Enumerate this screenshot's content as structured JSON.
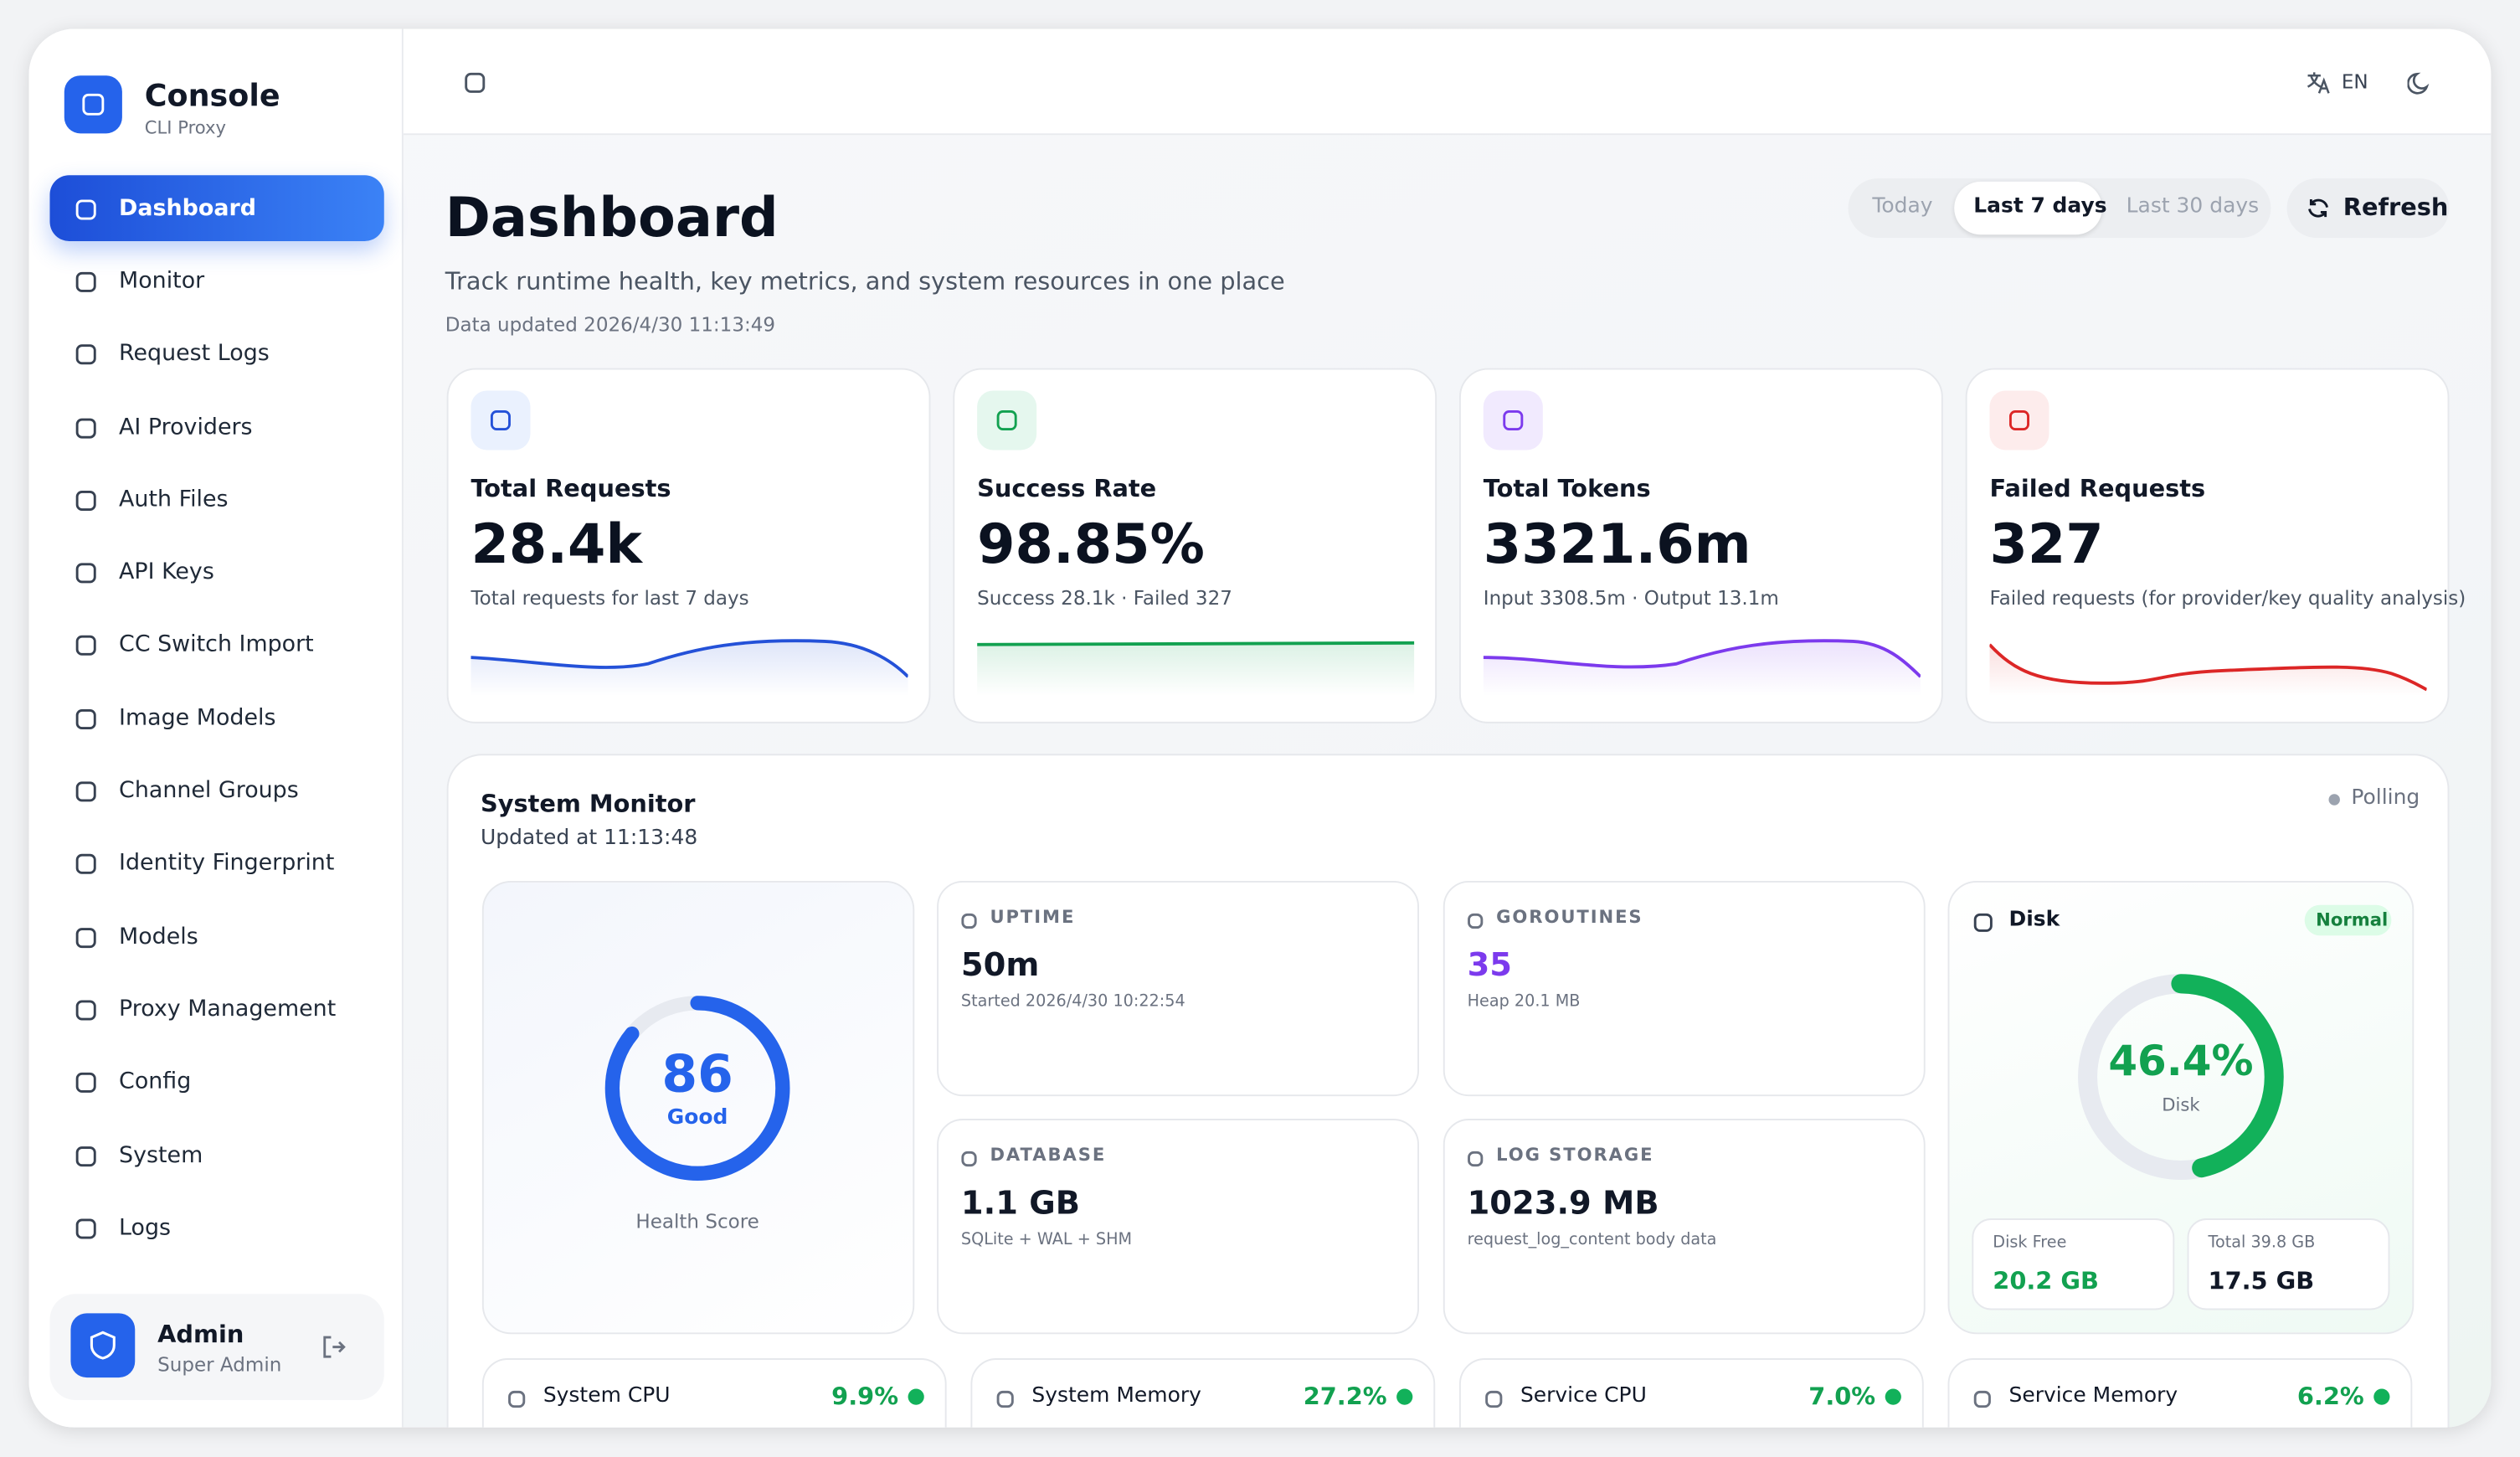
{
  "sidebar": {
    "brand": {
      "title": "Console",
      "subtitle": "CLI Proxy"
    },
    "nav": [
      "Dashboard",
      "Monitor",
      "Request Logs",
      "AI Providers",
      "Auth Files",
      "API Keys",
      "CC Switch Import",
      "Image Models",
      "Channel Groups",
      "Identity Fingerprint",
      "Models",
      "Proxy Management",
      "Config",
      "System",
      "Logs"
    ],
    "user": {
      "name": "Admin",
      "role": "Super Admin"
    }
  },
  "topbar": {
    "language": "EN"
  },
  "header": {
    "title": "Dashboard",
    "subtitle": "Track runtime health, key metrics, and system resources in one place",
    "updated": "Data updated 2026/4/30 11:13:49",
    "ranges": [
      "Today",
      "Last 7 days",
      "Last 30 days"
    ],
    "refresh": "Refresh"
  },
  "stats": [
    {
      "label": "Total Requests",
      "value": "28.4k",
      "note": "Total requests for last 7 days"
    },
    {
      "label": "Success Rate",
      "value": "98.85%",
      "note": "Success 28.1k · Failed 327"
    },
    {
      "label": "Total Tokens",
      "value": "3321.6m",
      "note": "Input 3308.5m · Output 13.1m"
    },
    {
      "label": "Failed Requests",
      "value": "327",
      "note": "Failed requests (for provider/key quality analysis)"
    }
  ],
  "monitor": {
    "title": "System Monitor",
    "updated": "Updated at 11:13:48",
    "status": "Polling",
    "health": {
      "score": 86,
      "grade": "Good",
      "label": "Health Score"
    },
    "tiles": [
      {
        "label": "UPTIME",
        "value": "50m",
        "note": "Started 2026/4/30 10:22:54"
      },
      {
        "label": "GOROUTINES",
        "value": "35",
        "note": "Heap 20.1 MB"
      },
      {
        "label": "DATABASE",
        "value": "1.1 GB",
        "note": "SQLite + WAL + SHM"
      },
      {
        "label": "LOG STORAGE",
        "value": "1023.9 MB",
        "note": "request_log_content body data"
      }
    ],
    "disk": {
      "title": "Disk",
      "badge": "Normal",
      "percent": {
        "value": 46.4,
        "label": "46.4%"
      },
      "caption": "Disk",
      "free_label": "Disk Free",
      "free": "20.2 GB",
      "total_label": "Total 39.8 GB",
      "used": "17.5 GB"
    },
    "resources": [
      {
        "label": "System CPU",
        "value": "9.9%"
      },
      {
        "label": "System Memory",
        "value": "27.2%"
      },
      {
        "label": "Service CPU",
        "value": "7.0%"
      },
      {
        "label": "Service Memory",
        "value": "6.2%"
      }
    ]
  }
}
